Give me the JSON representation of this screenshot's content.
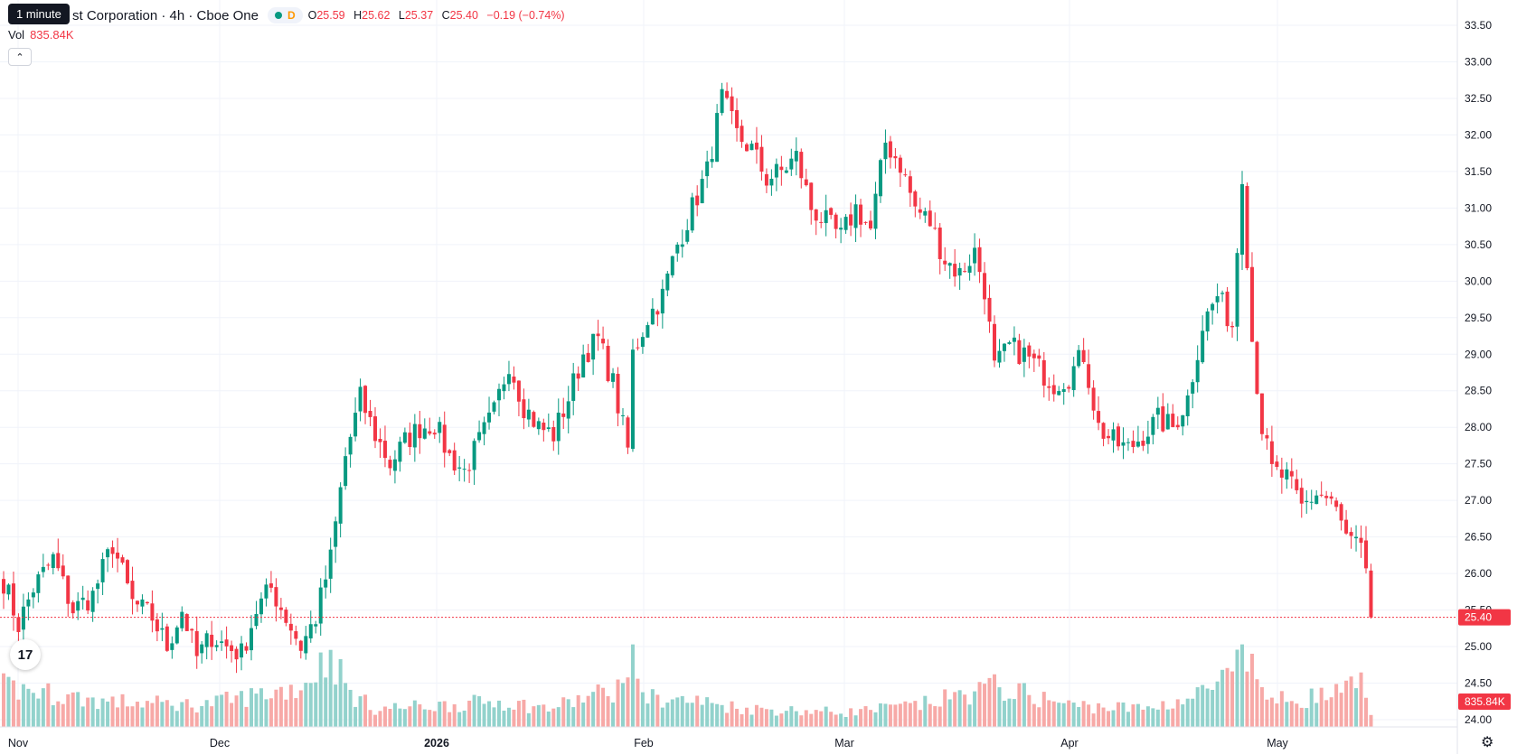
{
  "header": {
    "tooltip": "1 minute",
    "title": "st Corporation · 4h · Cboe One",
    "badge": "D",
    "open_label": "O",
    "open": "25.59",
    "high_label": "H",
    "high": "25.62",
    "low_label": "L",
    "low": "25.37",
    "close_label": "C",
    "close": "25.40",
    "change": "−0.19 (−0.74%)",
    "vol_label": "Vol",
    "vol_value": "835.84K"
  },
  "icons": {
    "collapse": "chevron-up-icon",
    "logo": "tradingview-logo",
    "settings": "gear-icon"
  },
  "colors": {
    "up": "#089981",
    "down": "#f23645",
    "vol_up": "#92d2cc",
    "vol_down": "#f7a9a7"
  },
  "chart_data": {
    "type": "candlestick",
    "interval": "4h",
    "y_axis_ticks": [
      "33.50",
      "33.00",
      "32.50",
      "32.00",
      "31.50",
      "31.00",
      "30.50",
      "30.00",
      "29.50",
      "29.00",
      "28.50",
      "28.00",
      "27.50",
      "27.00",
      "26.50",
      "26.00",
      "25.50",
      "25.00",
      "24.50",
      "24.00"
    ],
    "ylim": [
      24.0,
      33.5
    ],
    "x_axis_labels": [
      "Nov",
      "Dec",
      "2026",
      "Feb",
      "Mar",
      "Apr",
      "May"
    ],
    "last_price_label": "25.40",
    "last_volume_label": "835.84K",
    "grid": true,
    "anchors": [
      [
        0,
        25.9
      ],
      [
        3,
        25.3
      ],
      [
        6,
        25.8
      ],
      [
        10,
        26.2
      ],
      [
        14,
        25.5
      ],
      [
        18,
        25.7
      ],
      [
        22,
        26.4
      ],
      [
        26,
        25.6
      ],
      [
        30,
        25.4
      ],
      [
        33,
        25.0
      ],
      [
        36,
        25.5
      ],
      [
        39,
        24.85
      ],
      [
        42,
        25.15
      ],
      [
        45,
        25.0
      ],
      [
        48,
        24.9
      ],
      [
        51,
        25.5
      ],
      [
        54,
        25.8
      ],
      [
        57,
        25.4
      ],
      [
        60,
        25.0
      ],
      [
        63,
        25.4
      ],
      [
        66,
        26.2
      ],
      [
        69,
        27.6
      ],
      [
        72,
        28.4
      ],
      [
        75,
        27.9
      ],
      [
        78,
        27.5
      ],
      [
        81,
        27.8
      ],
      [
        84,
        28.0
      ],
      [
        87,
        28.05
      ],
      [
        90,
        27.6
      ],
      [
        93,
        27.4
      ],
      [
        96,
        27.8
      ],
      [
        99,
        28.2
      ],
      [
        102,
        28.9
      ],
      [
        105,
        28.3
      ],
      [
        108,
        28.0
      ],
      [
        111,
        27.9
      ],
      [
        114,
        28.4
      ],
      [
        117,
        29.0
      ],
      [
        120,
        29.2
      ],
      [
        123,
        28.6
      ],
      [
        126,
        27.7
      ],
      [
        127,
        29.0
      ],
      [
        130,
        29.5
      ],
      [
        133,
        29.8
      ],
      [
        136,
        30.5
      ],
      [
        139,
        31.0
      ],
      [
        142,
        31.5
      ],
      [
        145,
        32.5
      ],
      [
        148,
        32.0
      ],
      [
        151,
        31.8
      ],
      [
        154,
        31.4
      ],
      [
        157,
        31.5
      ],
      [
        160,
        31.7
      ],
      [
        163,
        31.0
      ],
      [
        166,
        30.8
      ],
      [
        169,
        30.6
      ],
      [
        172,
        31.0
      ],
      [
        175,
        30.7
      ],
      [
        178,
        31.9
      ],
      [
        181,
        31.6
      ],
      [
        184,
        31.0
      ],
      [
        187,
        30.8
      ],
      [
        190,
        30.3
      ],
      [
        193,
        30.1
      ],
      [
        196,
        30.4
      ],
      [
        198,
        29.9
      ],
      [
        200,
        28.8
      ],
      [
        203,
        29.1
      ],
      [
        206,
        29.0
      ],
      [
        209,
        28.8
      ],
      [
        212,
        28.6
      ],
      [
        215,
        28.7
      ],
      [
        218,
        29.0
      ],
      [
        221,
        28.0
      ],
      [
        224,
        27.8
      ],
      [
        227,
        27.7
      ],
      [
        230,
        27.9
      ],
      [
        233,
        28.1
      ],
      [
        236,
        28.0
      ],
      [
        239,
        28.4
      ],
      [
        242,
        29.4
      ],
      [
        245,
        29.8
      ],
      [
        248,
        29.4
      ],
      [
        250,
        31.5
      ],
      [
        252,
        29.2
      ],
      [
        254,
        28.0
      ],
      [
        256,
        27.4
      ],
      [
        259,
        27.3
      ],
      [
        262,
        26.9
      ],
      [
        265,
        27.1
      ],
      [
        268,
        27.0
      ],
      [
        271,
        26.5
      ],
      [
        274,
        26.3
      ],
      [
        276,
        25.5
      ]
    ],
    "volume_relative": [
      [
        0,
        0.55
      ],
      [
        20,
        0.35
      ],
      [
        40,
        0.3
      ],
      [
        60,
        0.55
      ],
      [
        66,
        1.0
      ],
      [
        70,
        0.45
      ],
      [
        75,
        0.25
      ],
      [
        90,
        0.3
      ],
      [
        100,
        0.35
      ],
      [
        110,
        0.25
      ],
      [
        125,
        0.55
      ],
      [
        126,
        1.0
      ],
      [
        130,
        0.4
      ],
      [
        140,
        0.35
      ],
      [
        150,
        0.25
      ],
      [
        170,
        0.2
      ],
      [
        185,
        0.3
      ],
      [
        200,
        0.55
      ],
      [
        215,
        0.3
      ],
      [
        230,
        0.25
      ],
      [
        240,
        0.4
      ],
      [
        248,
        0.7
      ],
      [
        250,
        0.9
      ],
      [
        252,
        0.8
      ],
      [
        256,
        0.35
      ],
      [
        270,
        0.45
      ],
      [
        274,
        0.6
      ],
      [
        276,
        0.25
      ]
    ]
  }
}
